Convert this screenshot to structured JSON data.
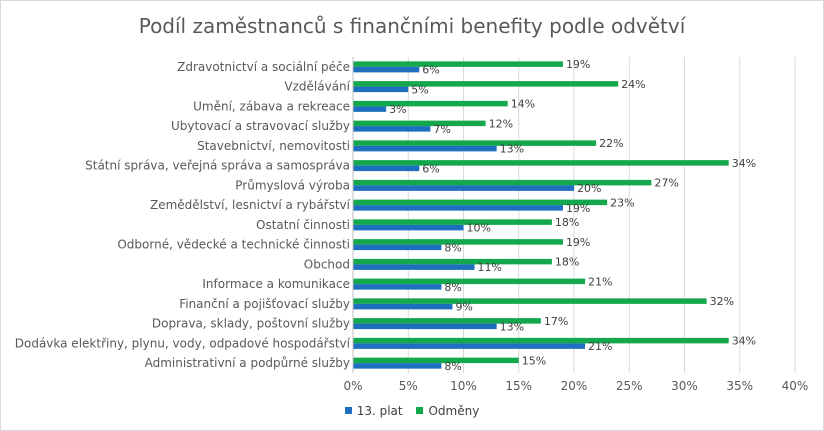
{
  "colors": {
    "plat": "#1f6fbf",
    "odmeny": "#12a84b",
    "grid": "#d9d9d9",
    "text": "#595959"
  },
  "chart_data": {
    "type": "bar",
    "orientation": "horizontal",
    "title": "Podíl zaměstnanců s finančními benefity podle odvětví",
    "categories": [
      "Zdravotnictví a sociální péče",
      "Vzdělávání",
      "Umění, zábava a rekreace",
      "Ubytovací a stravovací služby",
      "Stavebnictví, nemovitosti",
      "Státní správa, veřejná správa a samospráva",
      "Průmyslová výroba",
      "Zemědělství, lesnictví a rybářství",
      "Ostatní činnosti",
      "Odborné, vědecké a technické činnosti",
      "Obchod",
      "Informace a komunikace",
      "Finanční a pojišťovací služby",
      "Doprava, sklady, poštovní služby",
      "Dodávka elektřiny, plynu, vody, odpadové hospodářství",
      "Administrativní a podpůrné služby"
    ],
    "series": [
      {
        "name": "13. plat",
        "color": "#1f6fbf",
        "values": [
          6,
          5,
          3,
          7,
          13,
          6,
          20,
          19,
          10,
          8,
          11,
          8,
          9,
          13,
          21,
          8
        ]
      },
      {
        "name": "Odměny",
        "color": "#12a84b",
        "values": [
          19,
          24,
          14,
          12,
          22,
          34,
          27,
          23,
          18,
          19,
          18,
          21,
          32,
          17,
          34,
          15
        ]
      }
    ],
    "xlim": [
      0,
      40
    ],
    "xticks": [
      0,
      5,
      10,
      15,
      20,
      25,
      30,
      35,
      40
    ],
    "tick_suffix": "%",
    "grid": true,
    "legend_position": "bottom"
  }
}
